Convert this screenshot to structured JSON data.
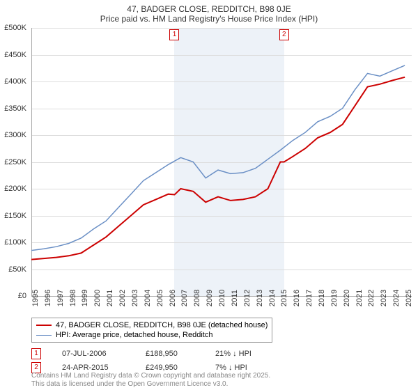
{
  "title": "47, BADGER CLOSE, REDDITCH, B98 0JE",
  "subtitle": "Price paid vs. HM Land Registry's House Price Index (HPI)",
  "chart": {
    "type": "line",
    "background_color": "#ffffff",
    "grid_color": "#dcdcdc",
    "axis_color": "#aaaaaa",
    "xlim": [
      1995,
      2025.5
    ],
    "ylim": [
      0,
      500
    ],
    "ytick_step": 50,
    "ytick_prefix": "£",
    "ytick_suffix": "K",
    "xticks": [
      1995,
      1996,
      1997,
      1998,
      1999,
      2000,
      2001,
      2002,
      2003,
      2004,
      2005,
      2006,
      2007,
      2008,
      2009,
      2010,
      2011,
      2012,
      2013,
      2014,
      2015,
      2016,
      2017,
      2018,
      2019,
      2020,
      2021,
      2022,
      2023,
      2024,
      2025
    ],
    "highlight_band_color": "#e6ecf5",
    "series": [
      {
        "name": "47, BADGER CLOSE, REDDITCH, B98 0JE (detached house)",
        "color": "#cc0000",
        "width": 2,
        "data": [
          [
            1995,
            68
          ],
          [
            1996,
            70
          ],
          [
            1997,
            72
          ],
          [
            1998,
            75
          ],
          [
            1999,
            80
          ],
          [
            2000,
            95
          ],
          [
            2001,
            110
          ],
          [
            2002,
            130
          ],
          [
            2003,
            150
          ],
          [
            2004,
            170
          ],
          [
            2005,
            180
          ],
          [
            2006,
            190
          ],
          [
            2006.5,
            189
          ],
          [
            2007,
            200
          ],
          [
            2008,
            195
          ],
          [
            2009,
            175
          ],
          [
            2010,
            185
          ],
          [
            2011,
            178
          ],
          [
            2012,
            180
          ],
          [
            2013,
            185
          ],
          [
            2014,
            200
          ],
          [
            2015,
            250
          ],
          [
            2015.3,
            250
          ],
          [
            2016,
            260
          ],
          [
            2017,
            275
          ],
          [
            2018,
            295
          ],
          [
            2019,
            305
          ],
          [
            2020,
            320
          ],
          [
            2021,
            355
          ],
          [
            2022,
            390
          ],
          [
            2023,
            395
          ],
          [
            2024,
            402
          ],
          [
            2025,
            408
          ]
        ]
      },
      {
        "name": "HPI: Average price, detached house, Redditch",
        "color": "#6a8fc5",
        "width": 1.5,
        "data": [
          [
            1995,
            85
          ],
          [
            1996,
            88
          ],
          [
            1997,
            92
          ],
          [
            1998,
            98
          ],
          [
            1999,
            108
          ],
          [
            2000,
            125
          ],
          [
            2001,
            140
          ],
          [
            2002,
            165
          ],
          [
            2003,
            190
          ],
          [
            2004,
            215
          ],
          [
            2005,
            230
          ],
          [
            2006,
            245
          ],
          [
            2007,
            258
          ],
          [
            2008,
            250
          ],
          [
            2009,
            220
          ],
          [
            2010,
            235
          ],
          [
            2011,
            228
          ],
          [
            2012,
            230
          ],
          [
            2013,
            238
          ],
          [
            2014,
            255
          ],
          [
            2015,
            272
          ],
          [
            2016,
            290
          ],
          [
            2017,
            305
          ],
          [
            2018,
            325
          ],
          [
            2019,
            335
          ],
          [
            2020,
            350
          ],
          [
            2021,
            385
          ],
          [
            2022,
            415
          ],
          [
            2023,
            410
          ],
          [
            2024,
            420
          ],
          [
            2025,
            430
          ]
        ]
      }
    ],
    "markers": [
      {
        "n": "1",
        "x": 2006.5,
        "y_top": true
      },
      {
        "n": "2",
        "x": 2015.3,
        "y_top": true
      }
    ]
  },
  "legend": {
    "items": [
      {
        "color": "#cc0000",
        "width": 2,
        "label": "47, BADGER CLOSE, REDDITCH, B98 0JE (detached house)"
      },
      {
        "color": "#6a8fc5",
        "width": 1.5,
        "label": "HPI: Average price, detached house, Redditch"
      }
    ]
  },
  "events": [
    {
      "n": "1",
      "date": "07-JUL-2006",
      "price": "£188,950",
      "diff": "21% ↓ HPI"
    },
    {
      "n": "2",
      "date": "24-APR-2015",
      "price": "£249,950",
      "diff": "7% ↓ HPI"
    }
  ],
  "footer": {
    "line1": "Contains HM Land Registry data © Crown copyright and database right 2025.",
    "line2": "This data is licensed under the Open Government Licence v3.0."
  }
}
